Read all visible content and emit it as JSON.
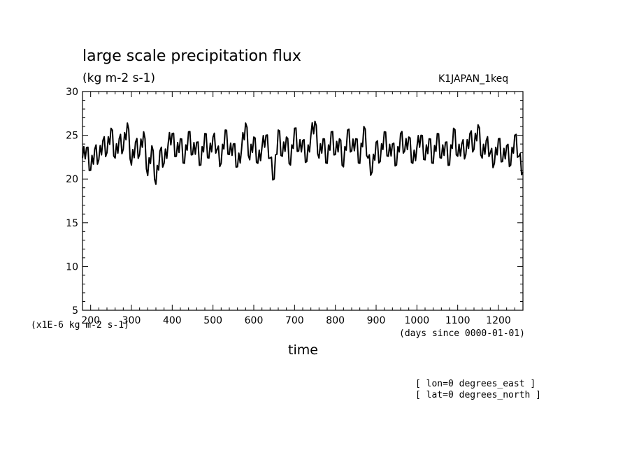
{
  "chart_data": {
    "type": "line",
    "title": "large scale precipitation flux",
    "subtitle": "(kg m-2 s-1)",
    "run_name": "K1JAPAN_1keq",
    "xlabel": "time",
    "x_units": "(days since 0000-01-01)",
    "y_scale_note": "(x1E-6 kg m-2 s-1)",
    "xlim": [
      180,
      1260
    ],
    "ylim": [
      5,
      30
    ],
    "x_ticks": [
      200,
      300,
      400,
      500,
      600,
      700,
      800,
      900,
      1000,
      1100,
      1200
    ],
    "y_ticks": [
      5,
      10,
      15,
      20,
      25,
      30
    ],
    "grid": false,
    "line_color": "#000000",
    "series": [
      {
        "x": [
          180,
          190,
          200,
          210,
          220,
          230,
          240,
          250,
          260,
          270,
          280,
          290,
          300,
          310,
          320,
          330,
          340,
          350,
          360,
          370,
          380,
          390,
          400,
          410,
          420,
          430,
          440,
          450,
          460,
          470,
          480,
          490,
          500,
          510,
          520,
          530,
          540,
          550,
          560,
          570,
          580,
          590,
          600,
          610,
          620,
          630,
          640,
          650,
          660,
          670,
          680,
          690,
          700,
          710,
          720,
          730,
          740,
          750,
          760,
          770,
          780,
          790,
          800,
          810,
          820,
          830,
          840,
          850,
          860,
          870,
          880,
          890,
          900,
          910,
          920,
          930,
          940,
          950,
          960,
          970,
          980,
          990,
          1000,
          1010,
          1020,
          1030,
          1040,
          1050,
          1060,
          1070,
          1080,
          1090,
          1100,
          1110,
          1120,
          1130,
          1140,
          1150,
          1160,
          1170,
          1180,
          1190,
          1200,
          1210,
          1220,
          1230,
          1240,
          1250,
          1260
        ],
        "values": [
          22.4,
          23.6,
          21.0,
          23.4,
          22.2,
          24.4,
          23.0,
          25.8,
          22.4,
          24.6,
          23.4,
          26.4,
          21.6,
          24.2,
          22.8,
          25.4,
          20.4,
          23.8,
          19.4,
          23.2,
          21.8,
          24.0,
          25.2,
          22.6,
          24.6,
          21.8,
          25.4,
          22.8,
          24.2,
          21.6,
          25.2,
          22.4,
          24.8,
          23.4,
          21.8,
          25.6,
          22.8,
          24.0,
          21.4,
          23.4,
          26.4,
          22.2,
          24.8,
          21.8,
          23.6,
          25.0,
          22.4,
          20.0,
          25.6,
          22.6,
          24.8,
          21.6,
          25.8,
          23.2,
          24.4,
          22.0,
          25.0,
          26.6,
          22.4,
          24.6,
          21.8,
          25.4,
          22.8,
          24.6,
          21.4,
          25.6,
          23.2,
          24.6,
          21.8,
          26.0,
          22.4,
          20.8,
          24.2,
          22.0,
          25.4,
          22.6,
          24.0,
          21.6,
          25.2,
          23.2,
          24.8,
          21.8,
          23.6,
          25.0,
          22.2,
          24.6,
          21.8,
          25.2,
          22.4,
          24.2,
          21.6,
          25.8,
          22.6,
          24.0,
          22.8,
          25.2,
          23.4,
          26.2,
          22.4,
          24.4,
          23.0,
          21.8,
          24.6,
          22.0,
          23.8,
          21.6,
          25.0,
          22.6,
          20.8
        ]
      }
    ]
  },
  "footer": {
    "lon": "[ lon=0 degrees_east ]",
    "lat": "[ lat=0 degrees_north ]"
  }
}
